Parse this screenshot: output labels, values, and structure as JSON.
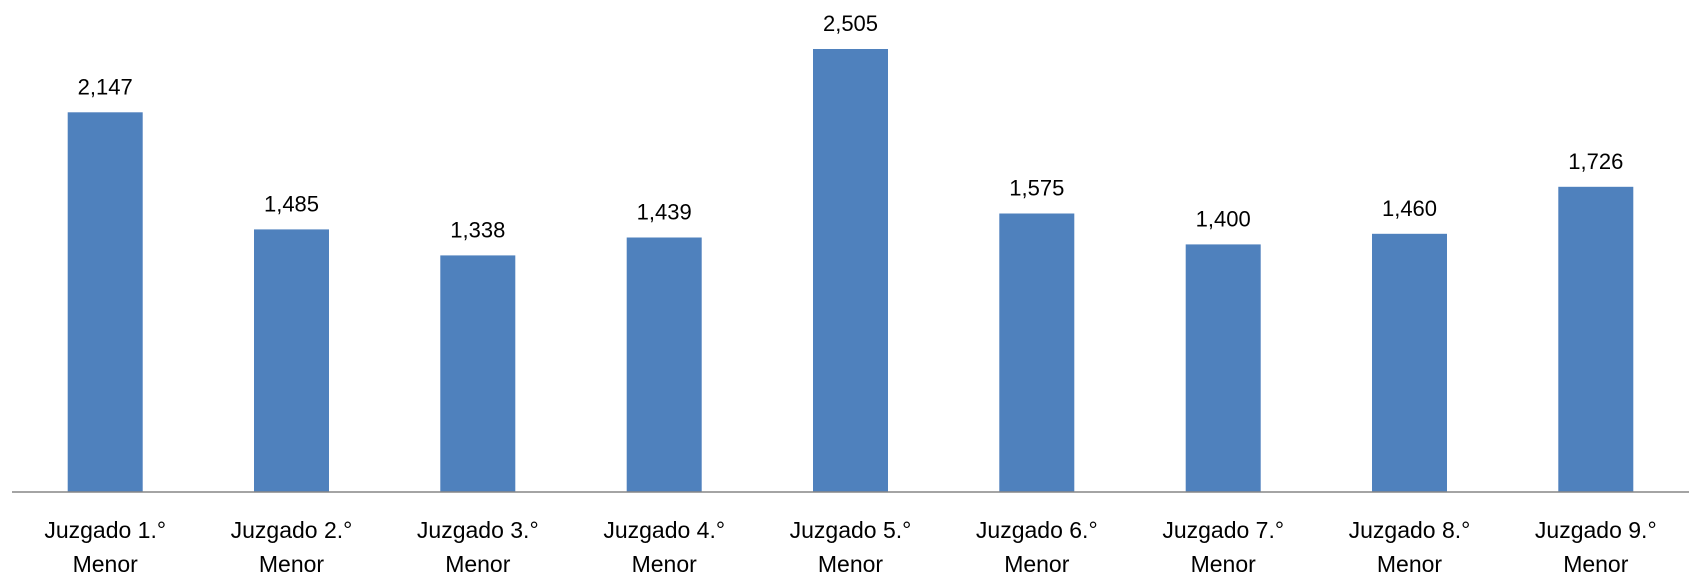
{
  "chart_data": {
    "type": "bar",
    "categories": [
      [
        "Juzgado 1.°",
        "Menor"
      ],
      [
        "Juzgado 2.°",
        "Menor"
      ],
      [
        "Juzgado 3.°",
        "Menor"
      ],
      [
        "Juzgado 4.°",
        "Menor"
      ],
      [
        "Juzgado 5.°",
        "Menor"
      ],
      [
        "Juzgado 6.°",
        "Menor"
      ],
      [
        "Juzgado 7.°",
        "Menor"
      ],
      [
        "Juzgado 8.°",
        "Menor"
      ],
      [
        "Juzgado 9.°",
        "Menor"
      ]
    ],
    "values": [
      2147,
      1485,
      1338,
      1439,
      2505,
      1575,
      1400,
      1460,
      1726
    ],
    "value_labels": [
      "2,147",
      "1,485",
      "1,338",
      "1,439",
      "2,505",
      "1,575",
      "1,400",
      "1,460",
      "1,726"
    ],
    "title": "",
    "xlabel": "",
    "ylabel": "",
    "ylim": [
      0,
      2505
    ],
    "grid": false,
    "legend": "none",
    "bar_color": "#4F81BD",
    "axis_color": "#868686"
  }
}
